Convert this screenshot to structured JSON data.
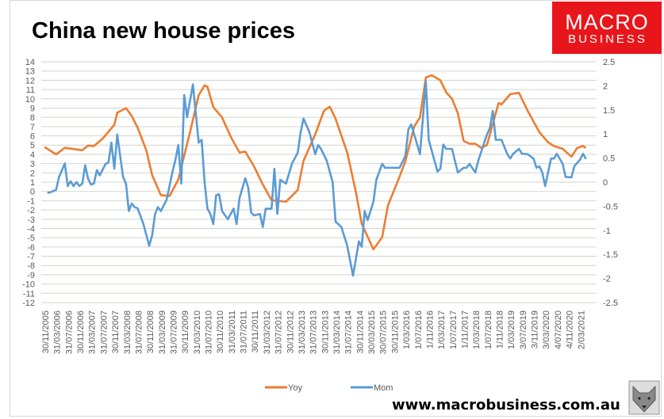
{
  "chart_data": {
    "type": "line",
    "title": "China new house prices",
    "x_tick_labels": [
      "30/11/2005",
      "31/03/2006",
      "31/07/2006",
      "30/11/2006",
      "31/03/2007",
      "31/07/2007",
      "30/11/2007",
      "31/03/2008",
      "31/07/2008",
      "30/11/2008",
      "31/03/2009",
      "31/07/2009",
      "30/11/2009",
      "31/03/2010",
      "31/07/2010",
      "30/11/2010",
      "31/03/2011",
      "31/07/2011",
      "30/11/2011",
      "31/03/2012",
      "31/07/2012",
      "30/11/2012",
      "31/03/2013",
      "31/07/2013",
      "30/11/2013",
      "31/03/2014",
      "31/07/2014",
      "30/11/2014",
      "30/03/2015",
      "30/07/2015",
      "30/11/2015",
      "1/03/2016",
      "1/07/2016",
      "1/11/2016",
      "1/03/2017",
      "1/07/2017",
      "1/11/2017",
      "1/03/2018",
      "1/07/2018",
      "1/11/2018",
      "1/03/2019",
      "3/07/2019",
      "3/11/2019",
      "3/03/2020",
      "4/07/2020",
      "4/11/2020",
      "2/03/2021"
    ],
    "x_start": "2005-11",
    "y_left": {
      "range": [
        -12,
        14
      ],
      "ticks": [
        14,
        13,
        12,
        11,
        10,
        9,
        8,
        7,
        6,
        5,
        4,
        3,
        2,
        1,
        0,
        -1,
        -2,
        -3,
        -4,
        -5,
        -6,
        -7,
        -8,
        -9,
        -10,
        -11,
        -12
      ]
    },
    "y_right": {
      "range": [
        -2.5,
        2.5
      ],
      "ticks": [
        "2.5",
        "2",
        "1.5",
        "1",
        "0.5",
        "0",
        "-0.5",
        "-1",
        "-1.5",
        "-2",
        "-2.5"
      ]
    },
    "grid": true,
    "legend_position": "bottom",
    "series": [
      {
        "name": "Yoy",
        "axis": "left",
        "color": "#ED7D31",
        "points": [
          [
            "2005-11",
            4.8
          ],
          [
            "2006-03",
            4.0
          ],
          [
            "2006-06",
            4.7
          ],
          [
            "2006-12",
            4.45
          ],
          [
            "2007-02",
            4.95
          ],
          [
            "2007-04",
            4.9
          ],
          [
            "2007-07",
            5.7
          ],
          [
            "2007-11",
            7.2
          ],
          [
            "2007-12",
            8.5
          ],
          [
            "2008-03",
            9.0
          ],
          [
            "2008-05",
            8.15
          ],
          [
            "2008-07",
            6.9
          ],
          [
            "2008-10",
            4.45
          ],
          [
            "2008-12",
            1.75
          ],
          [
            "2009-03",
            -0.4
          ],
          [
            "2009-06",
            -0.5
          ],
          [
            "2009-09",
            1.3
          ],
          [
            "2010-01",
            6.4
          ],
          [
            "2010-04",
            10.4
          ],
          [
            "2010-06",
            11.45
          ],
          [
            "2010-07",
            11.3
          ],
          [
            "2010-09",
            9.1
          ],
          [
            "2010-12",
            8.0
          ],
          [
            "2011-01",
            7.3
          ],
          [
            "2011-03",
            5.9
          ],
          [
            "2011-06",
            4.2
          ],
          [
            "2011-08",
            4.3
          ],
          [
            "2011-11",
            2.7
          ],
          [
            "2012-02",
            0.75
          ],
          [
            "2012-05",
            -0.95
          ],
          [
            "2012-10",
            -1.1
          ],
          [
            "2013-02",
            0.15
          ],
          [
            "2013-04",
            3.3
          ],
          [
            "2013-08",
            6.15
          ],
          [
            "2013-11",
            8.7
          ],
          [
            "2014-01",
            9.15
          ],
          [
            "2014-03",
            7.85
          ],
          [
            "2014-07",
            4.2
          ],
          [
            "2014-10",
            -0.1
          ],
          [
            "2014-12",
            -3.5
          ],
          [
            "2015-04",
            -6.25
          ],
          [
            "2015-07",
            -4.95
          ],
          [
            "2015-09",
            -1.5
          ],
          [
            "2016-01",
            1.6
          ],
          [
            "2016-03",
            3.3
          ],
          [
            "2016-06",
            7.0
          ],
          [
            "2016-08",
            8.0
          ],
          [
            "2016-10",
            12.3
          ],
          [
            "2016-12",
            12.55
          ],
          [
            "2017-03",
            12.0
          ],
          [
            "2017-05",
            10.7
          ],
          [
            "2017-07",
            10.0
          ],
          [
            "2017-09",
            8.45
          ],
          [
            "2017-11",
            5.45
          ],
          [
            "2018-01",
            5.15
          ],
          [
            "2018-03",
            5.15
          ],
          [
            "2018-05",
            4.7
          ],
          [
            "2018-07",
            5.0
          ],
          [
            "2018-11",
            9.55
          ],
          [
            "2018-12",
            9.4
          ],
          [
            "2019-03",
            10.5
          ],
          [
            "2019-06",
            10.65
          ],
          [
            "2019-09",
            8.7
          ],
          [
            "2020-01",
            6.4
          ],
          [
            "2020-04",
            5.3
          ],
          [
            "2020-06",
            4.9
          ],
          [
            "2020-09",
            4.6
          ],
          [
            "2020-12",
            3.75
          ],
          [
            "2021-02",
            4.7
          ],
          [
            "2021-04",
            4.9
          ],
          [
            "2021-05",
            4.7
          ]
        ]
      },
      {
        "name": "Mom",
        "axis": "right",
        "color": "#5B9BD5",
        "points": [
          [
            "2005-12",
            -0.22
          ],
          [
            "2006-01",
            -0.21
          ],
          [
            "2006-03",
            -0.16
          ],
          [
            "2006-04",
            0.1
          ],
          [
            "2006-06",
            0.39
          ],
          [
            "2006-07",
            -0.08
          ],
          [
            "2006-08",
            0.02
          ],
          [
            "2006-09",
            -0.08
          ],
          [
            "2006-10",
            0
          ],
          [
            "2006-11",
            -0.08
          ],
          [
            "2006-12",
            -0.03
          ],
          [
            "2007-01",
            0.35
          ],
          [
            "2007-02",
            0.07
          ],
          [
            "2007-03",
            -0.05
          ],
          [
            "2007-04",
            -0.03
          ],
          [
            "2007-05",
            0.25
          ],
          [
            "2007-06",
            0.14
          ],
          [
            "2007-08",
            0.38
          ],
          [
            "2007-09",
            0.41
          ],
          [
            "2007-10",
            0.82
          ],
          [
            "2007-11",
            0.28
          ],
          [
            "2007-12",
            0.99
          ],
          [
            "2008-02",
            0.11
          ],
          [
            "2008-03",
            -0.03
          ],
          [
            "2008-04",
            -0.6
          ],
          [
            "2008-05",
            -0.44
          ],
          [
            "2008-06",
            -0.52
          ],
          [
            "2008-07",
            -0.54
          ],
          [
            "2008-09",
            -0.87
          ],
          [
            "2008-11",
            -1.32
          ],
          [
            "2008-12",
            -1.1
          ],
          [
            "2009-01",
            -0.66
          ],
          [
            "2009-02",
            -0.52
          ],
          [
            "2009-03",
            -0.6
          ],
          [
            "2009-05",
            -0.36
          ],
          [
            "2009-07",
            0.22
          ],
          [
            "2009-08",
            0.47
          ],
          [
            "2009-09",
            0.77
          ],
          [
            "2009-10",
            -0.03
          ],
          [
            "2009-11",
            1.81
          ],
          [
            "2009-12",
            1.35
          ],
          [
            "2010-02",
            2.03
          ],
          [
            "2010-04",
            0.82
          ],
          [
            "2010-05",
            0.88
          ],
          [
            "2010-06",
            0
          ],
          [
            "2010-07",
            -0.55
          ],
          [
            "2010-08",
            -0.66
          ],
          [
            "2010-09",
            -0.87
          ],
          [
            "2010-10",
            -0.27
          ],
          [
            "2010-11",
            -0.25
          ],
          [
            "2010-12",
            -0.6
          ],
          [
            "2011-02",
            -0.77
          ],
          [
            "2011-04",
            -0.55
          ],
          [
            "2011-05",
            -0.87
          ],
          [
            "2011-06",
            -0.33
          ],
          [
            "2011-08",
            0.08
          ],
          [
            "2011-09",
            -0.11
          ],
          [
            "2011-10",
            -0.63
          ],
          [
            "2011-11",
            -0.69
          ],
          [
            "2012-01",
            -0.66
          ],
          [
            "2012-02",
            -0.93
          ],
          [
            "2012-03",
            -0.55
          ],
          [
            "2012-05",
            -0.55
          ],
          [
            "2012-06",
            0.28
          ],
          [
            "2012-07",
            -0.66
          ],
          [
            "2012-08",
            0.05
          ],
          [
            "2012-10",
            -0.03
          ],
          [
            "2012-12",
            0.38
          ],
          [
            "2013-02",
            0.61
          ],
          [
            "2013-03",
            1.04
          ],
          [
            "2013-04",
            1.32
          ],
          [
            "2013-06",
            1.04
          ],
          [
            "2013-08",
            0.58
          ],
          [
            "2013-09",
            0.77
          ],
          [
            "2013-10",
            0.69
          ],
          [
            "2013-12",
            0.44
          ],
          [
            "2014-02",
            0
          ],
          [
            "2014-03",
            -0.82
          ],
          [
            "2014-05",
            -0.93
          ],
          [
            "2014-07",
            -1.32
          ],
          [
            "2014-09",
            -1.94
          ],
          [
            "2014-10",
            -1.59
          ],
          [
            "2014-11",
            -1.23
          ],
          [
            "2014-12",
            -1.34
          ],
          [
            "2015-01",
            -0.6
          ],
          [
            "2015-02",
            -0.79
          ],
          [
            "2015-04",
            -0.41
          ],
          [
            "2015-05",
            0.05
          ],
          [
            "2015-07",
            0.38
          ],
          [
            "2015-08",
            0.3
          ],
          [
            "2016-01",
            0.3
          ],
          [
            "2016-03",
            0.55
          ],
          [
            "2016-04",
            1.1
          ],
          [
            "2016-05",
            1.2
          ],
          [
            "2016-08",
            0.58
          ],
          [
            "2016-10",
            2.09
          ],
          [
            "2016-11",
            0.88
          ],
          [
            "2017-02",
            0.22
          ],
          [
            "2017-03",
            0.28
          ],
          [
            "2017-04",
            0.78
          ],
          [
            "2017-05",
            0.69
          ],
          [
            "2017-07",
            0.69
          ],
          [
            "2017-09",
            0.2
          ],
          [
            "2017-11",
            0.3
          ],
          [
            "2017-12",
            0.3
          ],
          [
            "2018-01",
            0.38
          ],
          [
            "2018-03",
            0.2
          ],
          [
            "2018-04",
            0.44
          ],
          [
            "2018-07",
            0.99
          ],
          [
            "2018-08",
            1.12
          ],
          [
            "2018-09",
            1.48
          ],
          [
            "2018-10",
            0.88
          ],
          [
            "2018-12",
            0.88
          ],
          [
            "2019-02",
            0.58
          ],
          [
            "2019-03",
            0.49
          ],
          [
            "2019-04",
            0.59
          ],
          [
            "2019-06",
            0.69
          ],
          [
            "2019-07",
            0.59
          ],
          [
            "2019-09",
            0.58
          ],
          [
            "2019-11",
            0.49
          ],
          [
            "2019-12",
            0.3
          ],
          [
            "2020-01",
            0.33
          ],
          [
            "2020-02",
            0.2
          ],
          [
            "2020-03",
            -0.08
          ],
          [
            "2020-05",
            0.49
          ],
          [
            "2020-06",
            0.49
          ],
          [
            "2020-07",
            0.59
          ],
          [
            "2020-09",
            0.38
          ],
          [
            "2020-10",
            0.11
          ],
          [
            "2020-12",
            0.1
          ],
          [
            "2021-01",
            0.33
          ],
          [
            "2021-03",
            0.47
          ],
          [
            "2021-04",
            0.59
          ],
          [
            "2021-05",
            0.48
          ]
        ]
      }
    ]
  },
  "logo": {
    "line1": "MACRO",
    "line2": "BUSINESS",
    "color": "#E8161B"
  },
  "footer": {
    "url": "www.macrobusiness.com.au",
    "mascot_icon": "wolf-icon"
  },
  "colors": {
    "grid": "#D0D5CD",
    "frame": "#D9D9D9"
  }
}
